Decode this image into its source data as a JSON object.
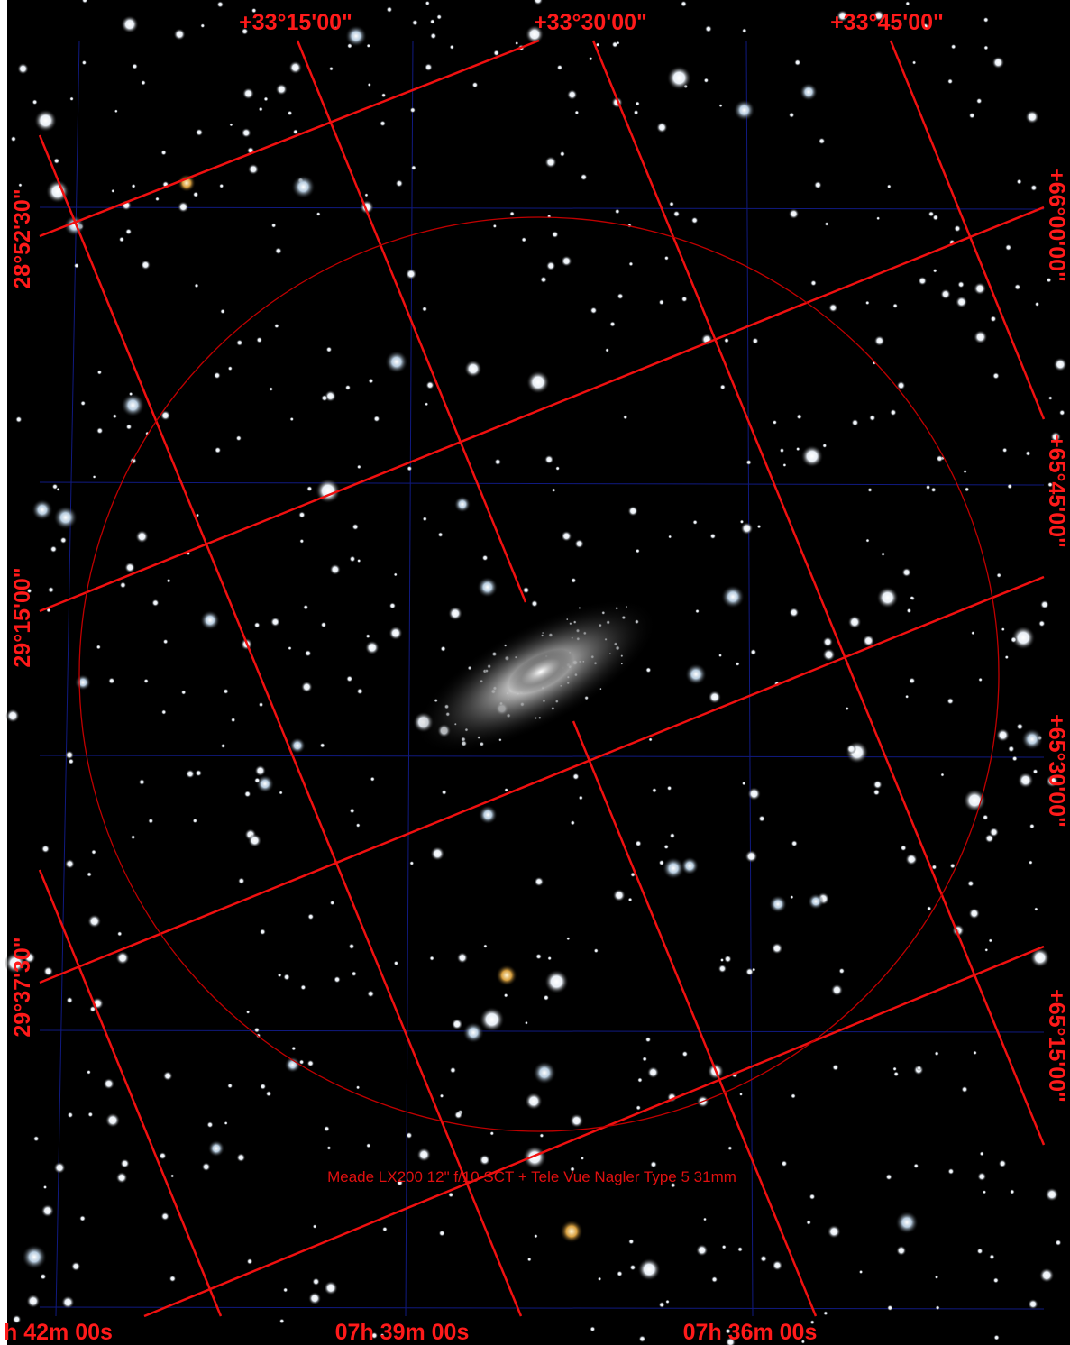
{
  "top_labels": [
    "+33°15'00\"",
    "+33°30'00\"",
    "+33°45'00\""
  ],
  "left_labels": [
    "28°52'30\"",
    "29°15'00\"",
    "29°37'30\""
  ],
  "right_labels": [
    "+66°00'00\"",
    "+65°45'00\"",
    "+65°30'00\"",
    "+65°15'00\""
  ],
  "bottom_labels": [
    "h 42m 00s",
    "07h 39m 00s",
    "07h 36m 00s"
  ],
  "caption": "Meade LX200 12\" f/10 SCT + Tele Vue Nagler Type 5 31mm"
}
